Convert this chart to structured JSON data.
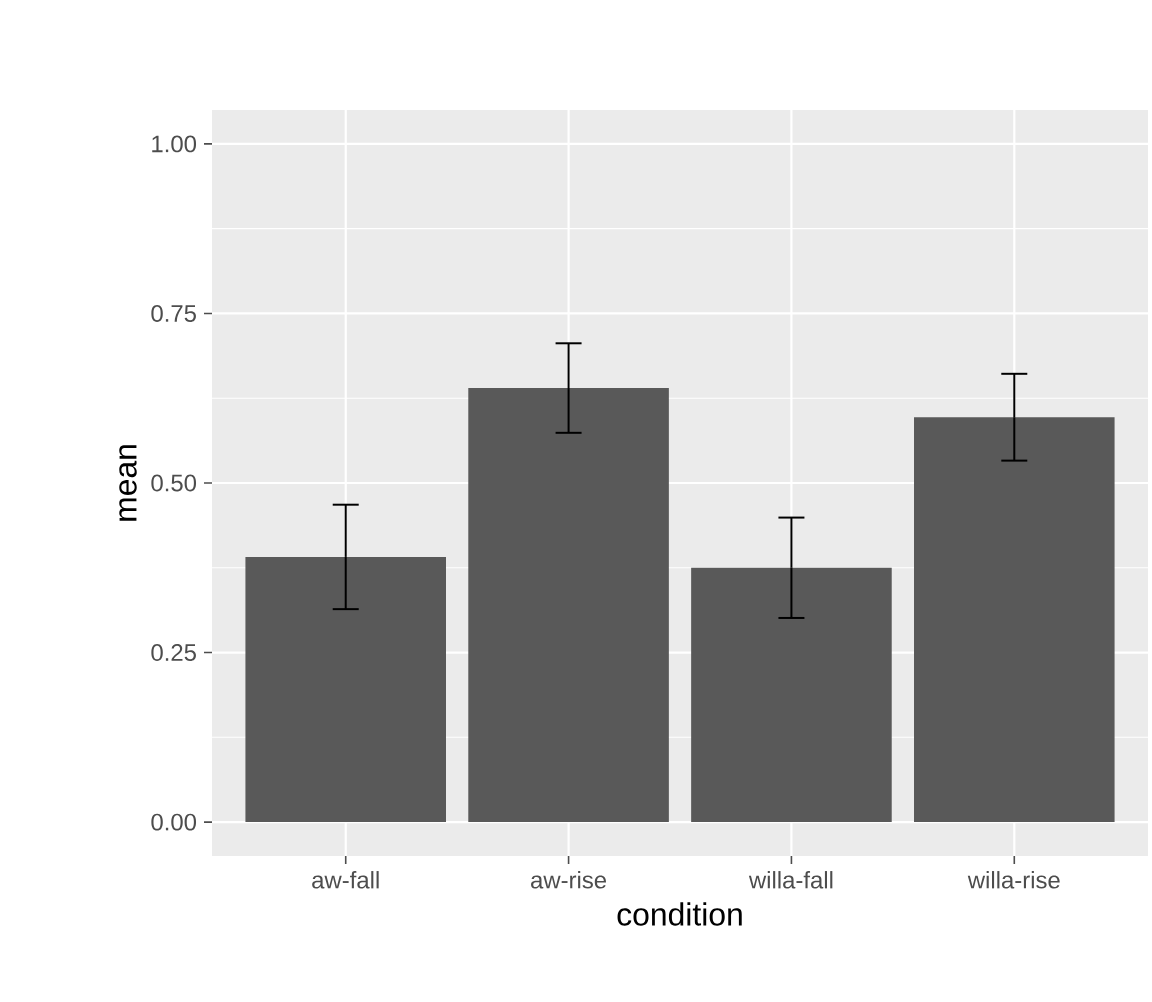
{
  "chart_data": {
    "type": "bar",
    "xlabel": "condition",
    "ylabel": "mean",
    "categories": [
      "aw-fall",
      "aw-rise",
      "willa-fall",
      "willa-rise"
    ],
    "values": [
      0.391,
      0.64,
      0.375,
      0.597
    ],
    "errors": [
      0.077,
      0.066,
      0.074,
      0.064
    ],
    "color": "#595959",
    "ylim": [
      -0.05,
      1.05
    ],
    "yticks": [
      {
        "value": 0,
        "label": "0.00"
      },
      {
        "value": 0.25,
        "label": "0.25"
      },
      {
        "value": 0.5,
        "label": "0.50"
      },
      {
        "value": 0.75,
        "label": "0.75"
      },
      {
        "value": 1,
        "label": "1.00"
      }
    ],
    "grid": true
  }
}
